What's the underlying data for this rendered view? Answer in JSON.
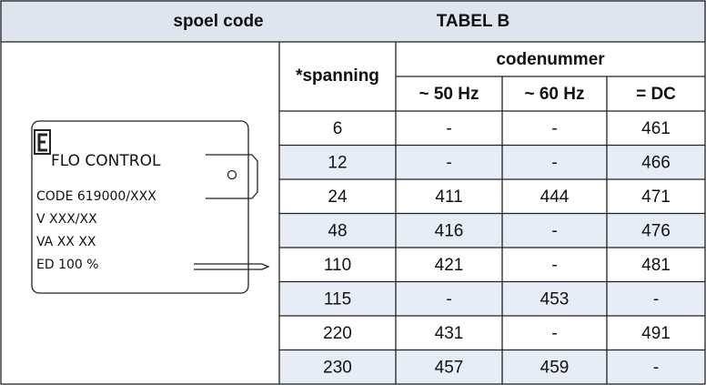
{
  "header": {
    "left": "spoel code",
    "right": "TABEL B"
  },
  "table": {
    "voltage_header": "*spanning",
    "group_header": "codenummer",
    "columns": [
      "~ 50 Hz",
      "~ 60 Hz",
      "= DC"
    ],
    "rows": [
      [
        6,
        "-",
        "-",
        461
      ],
      [
        12,
        "-",
        "-",
        466
      ],
      [
        24,
        411,
        444,
        471
      ],
      [
        48,
        416,
        "-",
        476
      ],
      [
        110,
        421,
        "-",
        481
      ],
      [
        115,
        "-",
        453,
        "-"
      ],
      [
        220,
        431,
        "-",
        491
      ],
      [
        230,
        457,
        459,
        "-"
      ]
    ]
  },
  "coil": {
    "brand": "FLO CONTROL",
    "code": "CODE 619000/XXX",
    "voltage": "V XXX/XX",
    "power": "VA XX XX",
    "duty": "ED 100 %"
  }
}
